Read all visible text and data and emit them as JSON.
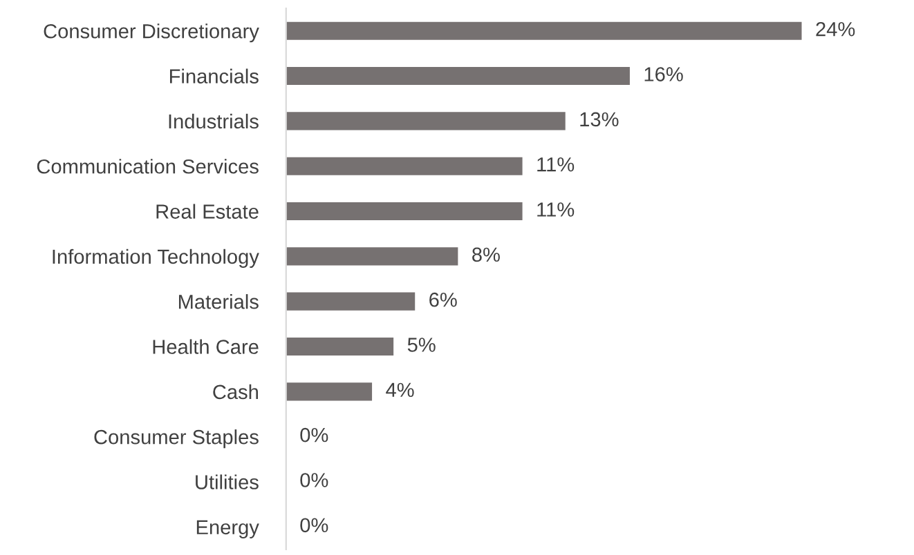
{
  "chart_data": {
    "type": "bar",
    "orientation": "horizontal",
    "data_labels": true,
    "categories": [
      "Consumer Discretionary",
      "Financials",
      "Industrials",
      "Communication Services",
      "Real Estate",
      "Information Technology",
      "Materials",
      "Health Care",
      "Cash",
      "Consumer Staples",
      "Utilities",
      "Energy"
    ],
    "values": [
      24,
      16,
      13,
      11,
      11,
      8,
      6,
      5,
      4,
      0,
      0,
      0
    ],
    "value_labels": [
      "24%",
      "16%",
      "13%",
      "11%",
      "11%",
      "8%",
      "6%",
      "5%",
      "4%",
      "0%",
      "0%",
      "0%"
    ],
    "color": "#767171",
    "grid": false,
    "legend": false
  }
}
